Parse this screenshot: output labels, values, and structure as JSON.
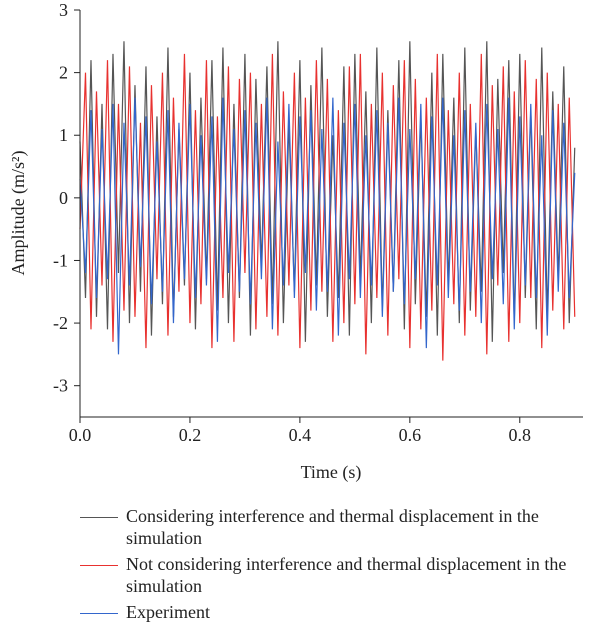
{
  "chart_data": {
    "type": "line",
    "xlabel": "Time (s)",
    "ylabel": "Amplitude (m/s²)",
    "xlim": [
      0,
      0.915
    ],
    "ylim": [
      -3.5,
      3
    ],
    "xticks": [
      {
        "value": 0,
        "label": "0.0"
      },
      0.2,
      0.4,
      0.6,
      0.8
    ],
    "yticks": [
      -3,
      -2,
      -1,
      0,
      1,
      2,
      3
    ],
    "x": [
      0,
      0.01,
      0.02,
      0.03,
      0.04,
      0.05,
      0.06,
      0.07,
      0.08,
      0.09,
      0.1,
      0.11,
      0.12,
      0.13,
      0.14,
      0.15,
      0.16,
      0.17,
      0.18,
      0.19,
      0.2,
      0.21,
      0.22,
      0.23,
      0.24,
      0.25,
      0.26,
      0.27,
      0.28,
      0.29,
      0.3,
      0.31,
      0.32,
      0.33,
      0.34,
      0.35,
      0.36,
      0.37,
      0.38,
      0.39,
      0.4,
      0.41,
      0.42,
      0.43,
      0.44,
      0.45,
      0.46,
      0.47,
      0.48,
      0.49,
      0.5,
      0.51,
      0.52,
      0.53,
      0.54,
      0.55,
      0.56,
      0.57,
      0.58,
      0.59,
      0.6,
      0.61,
      0.62,
      0.63,
      0.64,
      0.65,
      0.66,
      0.67,
      0.68,
      0.69,
      0.7,
      0.71,
      0.72,
      0.73,
      0.74,
      0.75,
      0.76,
      0.77,
      0.78,
      0.79,
      0.8,
      0.81,
      0.82,
      0.83,
      0.84,
      0.85,
      0.86,
      0.87,
      0.88,
      0.89,
      0.9
    ],
    "series": [
      {
        "name": "Considering interference and thermal displacement in the simulation",
        "color": "#555555",
        "values": [
          0.9,
          -1.6,
          2.2,
          -1.9,
          1.5,
          -2.1,
          2.3,
          -1.2,
          2.5,
          -2.0,
          1.8,
          -1.5,
          2.1,
          -2.2,
          1.3,
          -1.7,
          2.4,
          -1.9,
          1.1,
          -1.4,
          2.0,
          -2.1,
          1.6,
          -1.3,
          2.2,
          -1.8,
          2.4,
          -2.0,
          1.5,
          -1.6,
          2.3,
          -2.2,
          1.9,
          -1.1,
          2.1,
          -1.7,
          2.5,
          -2.0,
          1.2,
          -1.5,
          2.2,
          -2.3,
          1.8,
          -1.4,
          2.4,
          -1.9,
          1.0,
          -1.6,
          2.1,
          -2.2,
          2.3,
          -1.3,
          1.7,
          -2.0,
          2.4,
          -1.8,
          1.4,
          -1.5,
          2.2,
          -2.1,
          2.5,
          -1.7,
          1.3,
          -1.9,
          2.0,
          -2.2,
          2.3,
          -1.4,
          1.6,
          -2.0,
          2.4,
          -1.8,
          1.1,
          -1.5,
          2.5,
          -2.3,
          1.9,
          -1.2,
          2.2,
          -2.0,
          2.3,
          -1.6,
          1.4,
          -2.1,
          2.4,
          -1.9,
          1.7,
          -1.3,
          2.1,
          -2.0,
          0.8
        ]
      },
      {
        "name": "Not considering interference and thermal displacement in the simulation",
        "color": "#e8312f",
        "values": [
          -0.5,
          2.0,
          -2.1,
          1.7,
          -1.4,
          2.2,
          -2.3,
          1.5,
          -1.8,
          2.1,
          -1.9,
          1.2,
          -2.4,
          1.8,
          -1.3,
          2.0,
          -2.2,
          1.6,
          -1.5,
          2.3,
          -2.0,
          1.4,
          -1.7,
          2.2,
          -2.4,
          1.3,
          -1.6,
          2.1,
          -2.3,
          1.9,
          -1.2,
          2.0,
          -2.1,
          1.5,
          -1.9,
          2.3,
          -2.2,
          1.7,
          -1.4,
          2.0,
          -2.4,
          1.6,
          -1.8,
          2.2,
          -1.5,
          1.9,
          -2.3,
          1.4,
          -2.0,
          2.1,
          -1.7,
          2.3,
          -2.5,
          1.5,
          -1.6,
          2.0,
          -2.2,
          1.8,
          -1.3,
          2.2,
          -2.4,
          1.9,
          -2.1,
          1.6,
          -1.8,
          2.3,
          -2.6,
          1.4,
          -1.7,
          2.0,
          -2.2,
          1.5,
          -1.9,
          2.3,
          -2.5,
          1.8,
          -1.4,
          2.1,
          -2.3,
          1.7,
          -2.0,
          2.2,
          -1.6,
          1.9,
          -2.4,
          2.0,
          -1.8,
          1.5,
          -2.1,
          1.6,
          -1.9
        ]
      },
      {
        "name": "Experiment",
        "color": "#3366cc",
        "values": [
          0.3,
          -1.2,
          1.4,
          -1.6,
          1.1,
          -1.3,
          1.5,
          -2.5,
          1.2,
          -1.4,
          1.6,
          -1.1,
          1.3,
          -1.7,
          0.9,
          -1.5,
          1.4,
          -2.0,
          1.2,
          -1.3,
          1.5,
          -1.6,
          1.0,
          -1.4,
          1.3,
          -2.3,
          1.6,
          -1.2,
          1.1,
          -1.5,
          1.4,
          -1.7,
          1.2,
          -1.3,
          1.6,
          -2.1,
          0.9,
          -1.4,
          1.5,
          -1.6,
          1.3,
          -1.2,
          1.4,
          -1.8,
          1.1,
          -1.5,
          1.6,
          -2.2,
          1.2,
          -1.3,
          1.5,
          -1.6,
          1.0,
          -1.4,
          1.4,
          -1.9,
          1.2,
          -1.5,
          1.6,
          -1.7,
          1.1,
          -1.3,
          1.5,
          -2.4,
          1.3,
          -1.4,
          1.6,
          -1.6,
          1.0,
          -1.8,
          1.4,
          -1.5,
          1.2,
          -2.0,
          1.5,
          -1.3,
          1.1,
          -1.7,
          1.6,
          -2.1,
          1.3,
          -1.4,
          1.5,
          -1.6,
          1.0,
          -2.2,
          1.4,
          -1.5,
          1.2,
          -1.6,
          0.4
        ]
      }
    ]
  }
}
